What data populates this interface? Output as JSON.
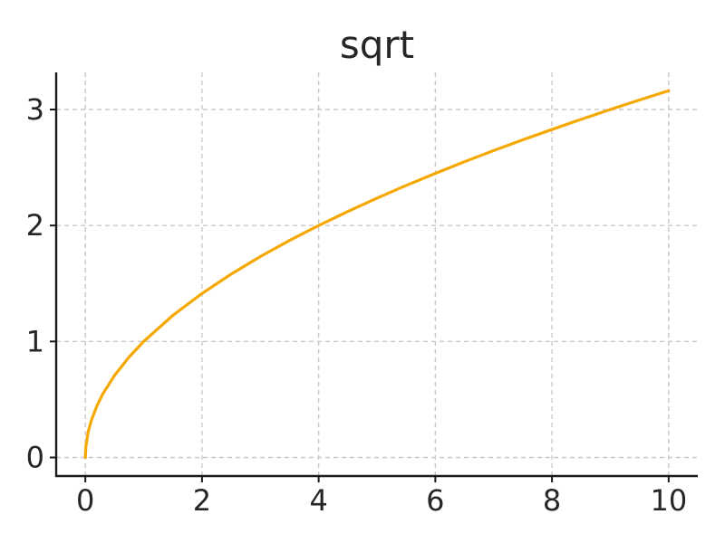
{
  "chart_data": {
    "type": "line",
    "title": "sqrt",
    "xlabel": "",
    "ylabel": "",
    "xlim": [
      -0.5,
      10.5
    ],
    "ylim": [
      -0.16,
      3.32
    ],
    "x_ticks": [
      0,
      2,
      4,
      6,
      8,
      10
    ],
    "x_tick_labels": [
      "0",
      "2",
      "4",
      "6",
      "8",
      "10"
    ],
    "y_ticks": [
      0,
      1,
      2,
      3
    ],
    "y_tick_labels": [
      "0",
      "1",
      "2",
      "3"
    ],
    "grid": true,
    "series": [
      {
        "color": "#f5a800",
        "x": [
          0,
          0.01,
          0.05,
          0.1,
          0.2,
          0.3,
          0.5,
          0.75,
          1,
          1.5,
          2,
          2.5,
          3,
          3.5,
          4,
          4.5,
          5,
          5.5,
          6,
          6.5,
          7,
          7.5,
          8,
          8.5,
          9,
          9.5,
          10
        ],
        "y": [
          0,
          0.1,
          0.224,
          0.316,
          0.447,
          0.548,
          0.707,
          0.866,
          1,
          1.225,
          1.414,
          1.581,
          1.732,
          1.871,
          2,
          2.121,
          2.236,
          2.345,
          2.449,
          2.55,
          2.646,
          2.739,
          2.828,
          2.915,
          3,
          3.082,
          3.162
        ]
      }
    ]
  }
}
